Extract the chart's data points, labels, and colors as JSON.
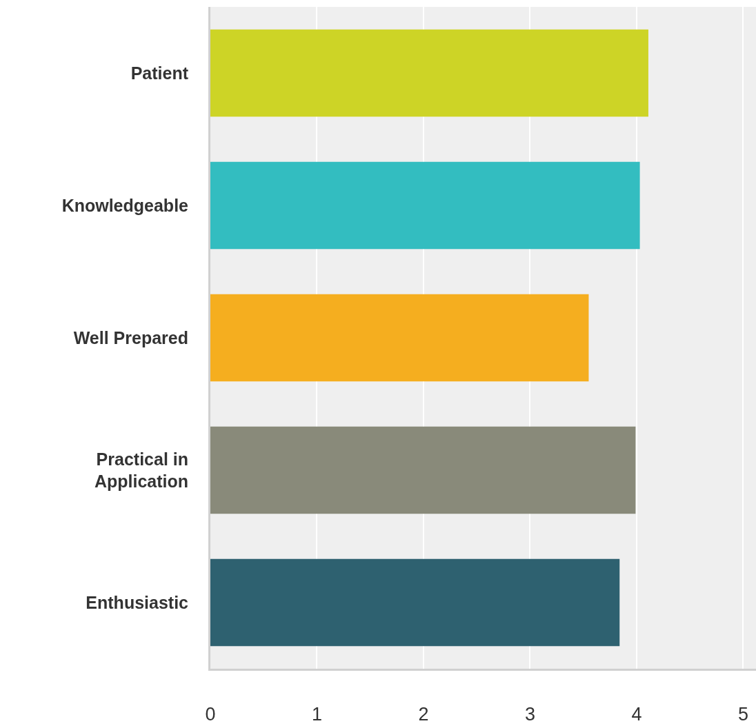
{
  "chart_data": {
    "type": "bar",
    "orientation": "horizontal",
    "categories": [
      "Patient",
      "Knowledgeable",
      "Well Prepared",
      "Practical in Application",
      "Enthusiastic"
    ],
    "values": [
      4.11,
      4.03,
      3.55,
      3.99,
      3.84
    ],
    "colors": [
      "#cdd426",
      "#33bdc0",
      "#f5ae1f",
      "#898a7a",
      "#2e6170"
    ],
    "xlim": [
      0,
      5.12
    ],
    "xticks": [
      0,
      1,
      2,
      3,
      4,
      5
    ],
    "grid": "x"
  }
}
